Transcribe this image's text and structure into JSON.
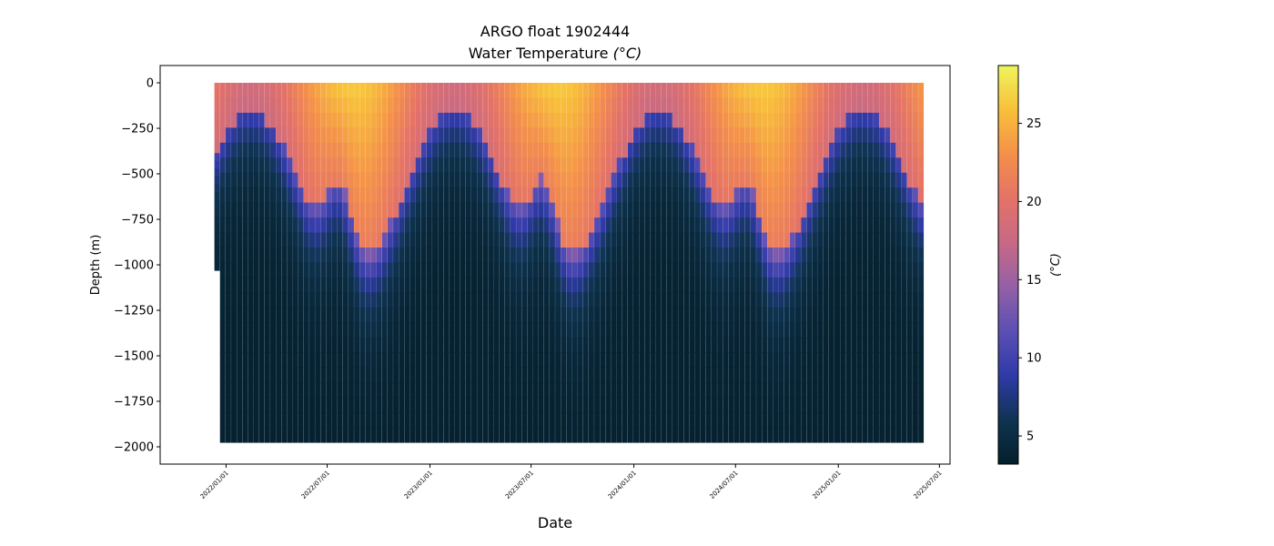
{
  "chart_data": {
    "type": "scatter",
    "title_line1": "ARGO float 1902444",
    "title_line2": "Water Temperature",
    "title_unit": "(°C)",
    "xlabel": "Date",
    "ylabel": "Depth (m)",
    "colorbar_label": "(°C)",
    "ylim": [
      -2095,
      95
    ],
    "xlim": [
      "2021-09-05",
      "2025-07-20"
    ],
    "clim": [
      3.2,
      28.7
    ],
    "y_ticks": [
      0,
      -250,
      -500,
      -750,
      -1000,
      -1250,
      -1500,
      -1750,
      -2000
    ],
    "y_tick_labels": [
      "0",
      "−250",
      "−500",
      "−750",
      "−1000",
      "−1250",
      "−1500",
      "−1750",
      "−2000"
    ],
    "x_ticks": [
      "2022-01-01",
      "2022-07-01",
      "2023-01-01",
      "2023-07-01",
      "2024-01-01",
      "2024-07-01",
      "2025-01-01",
      "2025-07-01"
    ],
    "x_tick_labels": [
      "2022/01/01",
      "2022/07/01",
      "2023/01/01",
      "2023/07/01",
      "2024/01/01",
      "2024/07/01",
      "2025/01/01",
      "2025/07/01"
    ],
    "colorbar_ticks": [
      5,
      10,
      15,
      20,
      25
    ],
    "colorbar_tick_labels": [
      "5",
      "10",
      "15",
      "20",
      "25"
    ],
    "colormap_stops": [
      "#041f2b",
      "#0f3452",
      "#2f3aa8",
      "#5b4fb4",
      "#9460a6",
      "#c76985",
      "#e47267",
      "#f4904a",
      "#f8c03a",
      "#eef55d"
    ],
    "profiles": {
      "first_date": "2021-12-16",
      "last_date": "2025-06-05",
      "interval_days": 10,
      "max_depth": -1975,
      "first_profile_max_depth": -1030
    }
  }
}
